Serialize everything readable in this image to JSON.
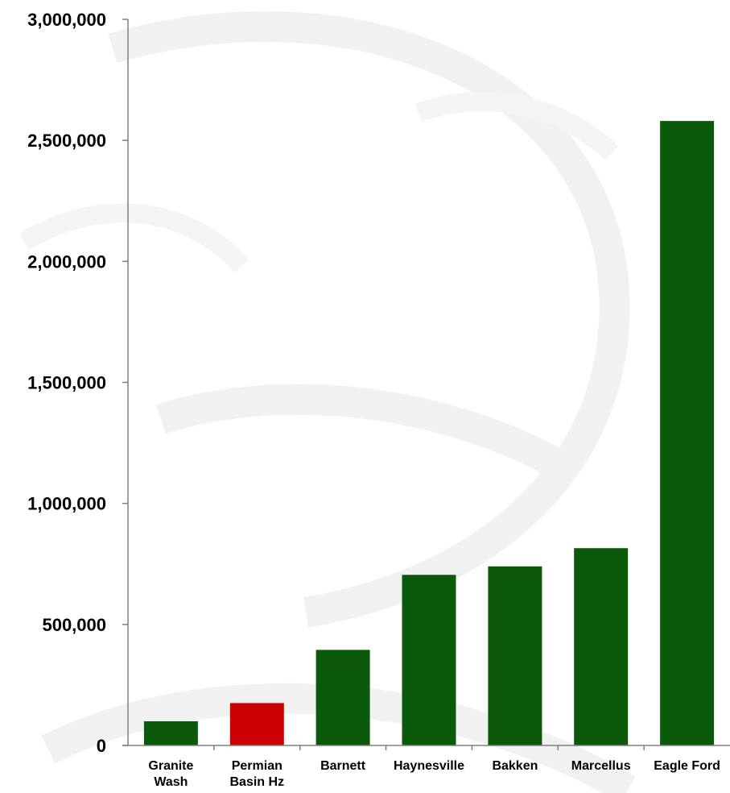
{
  "chart_data": {
    "type": "bar",
    "title": "",
    "xlabel": "",
    "ylabel": "",
    "categories": [
      [
        "Granite",
        "Wash"
      ],
      [
        "Permian",
        "Basin Hz"
      ],
      [
        "Barnett"
      ],
      [
        "Haynesville"
      ],
      [
        "Bakken"
      ],
      [
        "Marcellus"
      ],
      [
        "Eagle Ford"
      ]
    ],
    "values": [
      100000,
      175000,
      395000,
      705000,
      740000,
      815000,
      2580000
    ],
    "bar_colors": [
      "#0b5a0b",
      "#cc0000",
      "#0b5a0b",
      "#0b5a0b",
      "#0b5a0b",
      "#0b5a0b",
      "#0b5a0b"
    ],
    "ylim": [
      0,
      3000000
    ],
    "yticks": [
      0,
      500000,
      1000000,
      1500000,
      2000000,
      2500000,
      3000000
    ],
    "ytick_labels": [
      "0",
      "500,000",
      "1,000,000",
      "1,500,000",
      "2,000,000",
      "2,500,000",
      "3,000,000"
    ],
    "grid": false,
    "legend": "none",
    "colors": {
      "primary": "#0b5a0b",
      "highlight": "#cc0000",
      "axis": "#808080"
    }
  }
}
